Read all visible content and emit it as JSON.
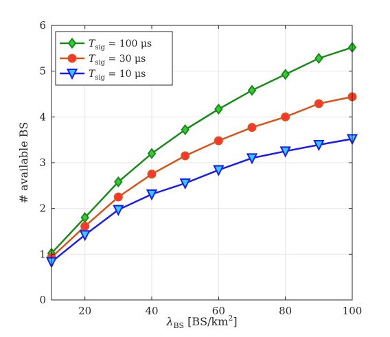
{
  "chart_data": {
    "type": "line",
    "title": "",
    "xlabel": "λBS [BS/km²]",
    "xlabel_parts": {
      "main": "λ",
      "sub": "BS",
      "rest": " [BS/km",
      "sup": "2",
      "end": "]"
    },
    "ylabel": "# available BS",
    "xlim": [
      10,
      100
    ],
    "ylim": [
      0,
      6
    ],
    "xticks": [
      20,
      40,
      60,
      80,
      100
    ],
    "yticks": [
      0,
      1,
      2,
      3,
      4,
      5,
      6
    ],
    "grid": true,
    "legend_position": "top-left",
    "x": [
      10,
      20,
      30,
      40,
      50,
      60,
      70,
      80,
      90,
      100
    ],
    "series": [
      {
        "name": "Tsig = 100 μs",
        "label_parts": {
          "main": "T",
          "sub": "sig",
          "rest": " = 100 μs"
        },
        "values": [
          1.02,
          1.8,
          2.58,
          3.2,
          3.72,
          4.17,
          4.58,
          4.93,
          5.28,
          5.52
        ],
        "color": "#1a8a1a",
        "marker_fill": "#33cc33",
        "marker": "diamond"
      },
      {
        "name": "Tsig = 30 μs",
        "label_parts": {
          "main": "T",
          "sub": "sig",
          "rest": " = 30 μs"
        },
        "values": [
          0.93,
          1.61,
          2.25,
          2.75,
          3.15,
          3.48,
          3.77,
          4.0,
          4.29,
          4.44
        ],
        "color": "#d95319",
        "marker_fill": "#ff3333",
        "marker": "circle"
      },
      {
        "name": "Tsig = 10 μs",
        "label_parts": {
          "main": "T",
          "sub": "sig",
          "rest": " = 10 μs"
        },
        "values": [
          0.83,
          1.42,
          1.97,
          2.31,
          2.55,
          2.84,
          3.1,
          3.25,
          3.39,
          3.52
        ],
        "color": "#1a1aff",
        "marker_fill": "#33ccff",
        "marker": "triangle-down"
      }
    ]
  }
}
